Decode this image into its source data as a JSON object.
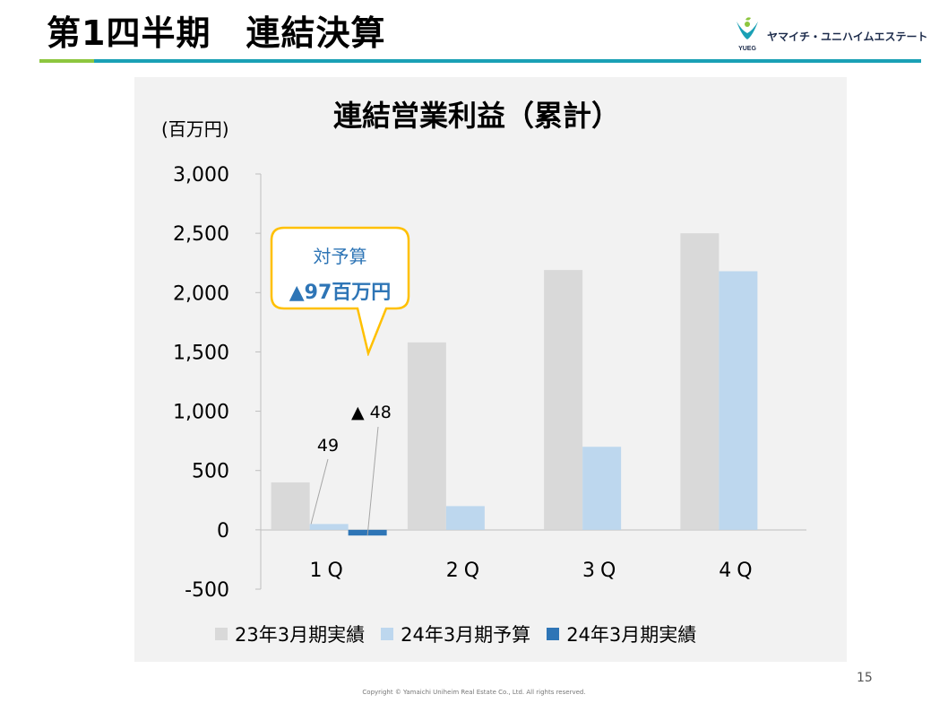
{
  "header": {
    "title": "第1四半期　連結決算",
    "company_name": "ヤマイチ・ユニハイムエステート",
    "logo_text": "YUEG"
  },
  "chart_data": {
    "type": "bar",
    "title": "連結営業利益（累計）",
    "unit_label": "(百万円)",
    "categories": [
      "1Q",
      "2Q",
      "3Q",
      "4Q"
    ],
    "category_labels": [
      "1Q",
      "2Q",
      "3Q",
      "4Q"
    ],
    "ylim": [
      -500,
      3000
    ],
    "yticks": [
      3000,
      2500,
      2000,
      1500,
      1000,
      500,
      0,
      -500
    ],
    "ytick_labels": [
      "3,000",
      "2,500",
      "2,000",
      "1,500",
      "1,000",
      "500",
      "0",
      "-500"
    ],
    "grid": false,
    "legend_position": "bottom",
    "series": [
      {
        "name": "23年3月期実績",
        "color": "#d9d9d9",
        "values": [
          400,
          1580,
          2190,
          2500
        ]
      },
      {
        "name": "24年3月期予算",
        "color": "#bdd7ee",
        "values": [
          49,
          200,
          700,
          2180
        ]
      },
      {
        "name": "24年3月期実績",
        "color": "#2e75b6",
        "values": [
          -48,
          null,
          null,
          null
        ]
      }
    ],
    "data_labels": [
      {
        "series": 1,
        "category": 0,
        "text": "49"
      },
      {
        "series": 2,
        "category": 0,
        "text": "▲ 48"
      }
    ],
    "callout": {
      "line1": "対予算",
      "line2": "▲97百万円",
      "border_color": "#ffc000"
    }
  },
  "footer": {
    "page_number": "15",
    "copyright": "Copyright © Yamaichi Uniheim Real Estate Co., Ltd. All rights reserved."
  }
}
